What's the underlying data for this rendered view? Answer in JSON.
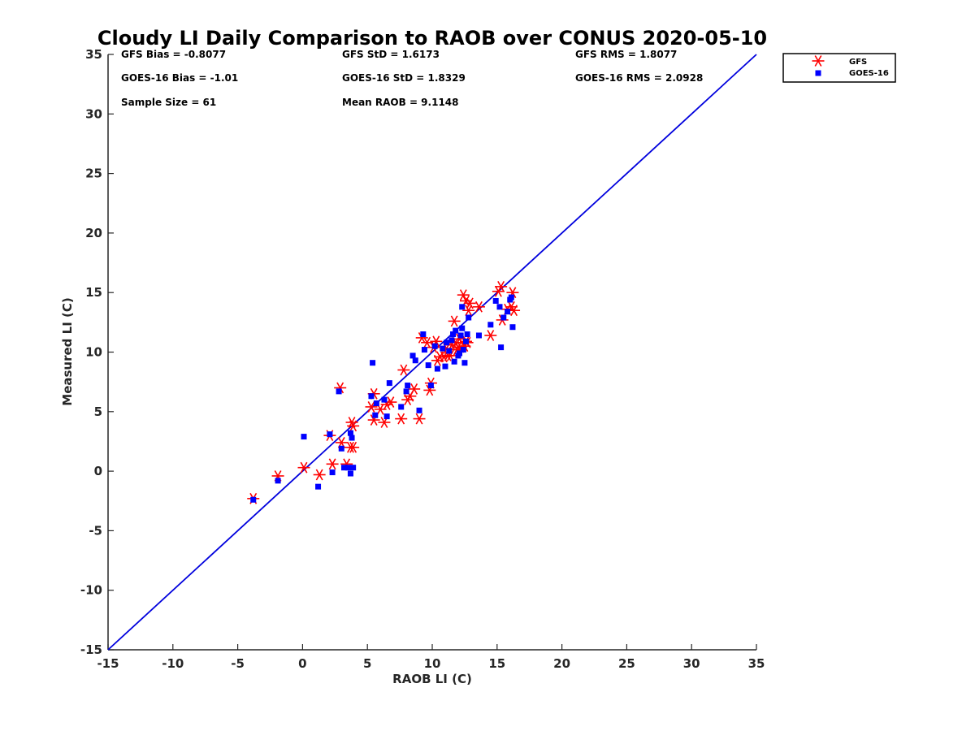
{
  "chart_data": {
    "type": "scatter",
    "title": "Cloudy LI Daily Comparison to RAOB over CONUS 2020-05-10",
    "xlabel": "RAOB LI (C)",
    "ylabel": "Measured LI (C)",
    "xlim": [
      -15,
      35
    ],
    "ylim": [
      -15,
      35
    ],
    "xticks": [
      -15,
      -10,
      -5,
      0,
      5,
      10,
      15,
      20,
      25,
      30,
      35
    ],
    "yticks": [
      -15,
      -10,
      -5,
      0,
      5,
      10,
      15,
      20,
      25,
      30,
      35
    ],
    "xtick_labels": [
      "-15",
      "-10",
      "-5",
      "0",
      "5",
      "10",
      "15",
      "20",
      "25",
      "30",
      "35"
    ],
    "ytick_labels": [
      "-15",
      "-10",
      "-5",
      "0",
      "5",
      "10",
      "15",
      "20",
      "25",
      "30",
      "35"
    ],
    "grid": false,
    "legend_position": "top-right outside plot",
    "reference_line": {
      "type": "1:1",
      "color": "#0000dd"
    },
    "stats": {
      "gfs_bias": "GFS Bias = -0.8077",
      "gfs_std": "GFS StD = 1.6173",
      "gfs_rms": "GFS RMS = 1.8077",
      "goes_bias": "GOES-16 Bias = -1.01",
      "goes_std": "GOES-16 StD = 1.8329",
      "goes_rms": "GOES-16 RMS = 2.0928",
      "sample_size": "Sample Size = 61",
      "mean_raob": "Mean RAOB = 9.1148"
    },
    "series": [
      {
        "name": "GFS",
        "marker": "asterisk",
        "color": "#ff0000",
        "points": [
          [
            -3.8,
            -2.3
          ],
          [
            -1.9,
            -0.4
          ],
          [
            0.1,
            0.3
          ],
          [
            1.3,
            -0.3
          ],
          [
            2.1,
            3.0
          ],
          [
            2.3,
            0.6
          ],
          [
            2.9,
            7.0
          ],
          [
            3.0,
            2.4
          ],
          [
            3.4,
            0.6
          ],
          [
            3.7,
            2.0
          ],
          [
            3.8,
            4.1
          ],
          [
            3.9,
            3.8
          ],
          [
            3.9,
            2.0
          ],
          [
            5.3,
            5.4
          ],
          [
            5.5,
            6.5
          ],
          [
            5.5,
            4.3
          ],
          [
            6.0,
            5.2
          ],
          [
            6.3,
            4.1
          ],
          [
            6.5,
            5.6
          ],
          [
            6.8,
            5.8
          ],
          [
            7.6,
            4.4
          ],
          [
            7.8,
            8.5
          ],
          [
            8.1,
            6.0
          ],
          [
            8.3,
            6.3
          ],
          [
            8.6,
            6.9
          ],
          [
            9.0,
            4.4
          ],
          [
            9.2,
            11.2
          ],
          [
            9.6,
            10.8
          ],
          [
            9.8,
            6.8
          ],
          [
            9.9,
            7.4
          ],
          [
            10.1,
            10.4
          ],
          [
            10.3,
            10.9
          ],
          [
            10.4,
            9.3
          ],
          [
            10.6,
            9.6
          ],
          [
            10.9,
            9.6
          ],
          [
            11.1,
            10.3
          ],
          [
            11.2,
            9.7
          ],
          [
            11.4,
            9.7
          ],
          [
            11.5,
            10.6
          ],
          [
            11.7,
            12.6
          ],
          [
            11.8,
            10.8
          ],
          [
            11.9,
            10.2
          ],
          [
            12.0,
            10.4
          ],
          [
            12.1,
            11.1
          ],
          [
            12.2,
            10.4
          ],
          [
            12.4,
            14.8
          ],
          [
            12.5,
            10.5
          ],
          [
            12.6,
            14.3
          ],
          [
            12.6,
            10.9
          ],
          [
            12.7,
            10.8
          ],
          [
            12.8,
            13.5
          ],
          [
            12.9,
            14.1
          ],
          [
            13.6,
            13.8
          ],
          [
            14.5,
            11.4
          ],
          [
            15.1,
            15.1
          ],
          [
            15.3,
            15.5
          ],
          [
            15.4,
            12.7
          ],
          [
            15.8,
            13.6
          ],
          [
            16.1,
            13.8
          ],
          [
            16.2,
            15.0
          ],
          [
            16.3,
            13.5
          ]
        ]
      },
      {
        "name": "GOES-16",
        "marker": "square",
        "color": "#0000ff",
        "points": [
          [
            -3.8,
            -2.4
          ],
          [
            -1.9,
            -0.8
          ],
          [
            0.1,
            2.9
          ],
          [
            1.2,
            -1.3
          ],
          [
            2.1,
            3.1
          ],
          [
            2.3,
            -0.1
          ],
          [
            2.8,
            6.7
          ],
          [
            3.0,
            1.9
          ],
          [
            3.2,
            0.3
          ],
          [
            3.5,
            0.3
          ],
          [
            3.7,
            -0.2
          ],
          [
            3.7,
            3.2
          ],
          [
            3.8,
            2.8
          ],
          [
            3.9,
            0.3
          ],
          [
            5.3,
            6.3
          ],
          [
            5.4,
            9.1
          ],
          [
            5.6,
            4.7
          ],
          [
            5.7,
            5.7
          ],
          [
            6.3,
            6.0
          ],
          [
            6.5,
            4.6
          ],
          [
            6.7,
            7.4
          ],
          [
            7.6,
            5.4
          ],
          [
            8.0,
            6.7
          ],
          [
            8.1,
            7.2
          ],
          [
            8.5,
            9.7
          ],
          [
            8.7,
            9.3
          ],
          [
            9.0,
            5.1
          ],
          [
            9.3,
            11.5
          ],
          [
            9.4,
            10.2
          ],
          [
            9.7,
            8.9
          ],
          [
            9.9,
            7.2
          ],
          [
            10.2,
            10.5
          ],
          [
            10.4,
            8.6
          ],
          [
            10.8,
            10.3
          ],
          [
            11.0,
            8.8
          ],
          [
            11.1,
            10.8
          ],
          [
            11.3,
            10.1
          ],
          [
            11.5,
            11.0
          ],
          [
            11.6,
            11.5
          ],
          [
            11.7,
            9.2
          ],
          [
            11.8,
            11.8
          ],
          [
            12.0,
            9.7
          ],
          [
            12.1,
            9.9
          ],
          [
            12.2,
            11.4
          ],
          [
            12.3,
            13.8
          ],
          [
            12.3,
            12.0
          ],
          [
            12.4,
            10.2
          ],
          [
            12.5,
            9.1
          ],
          [
            12.6,
            10.9
          ],
          [
            12.7,
            11.5
          ],
          [
            12.8,
            12.9
          ],
          [
            13.6,
            11.4
          ],
          [
            14.5,
            12.3
          ],
          [
            14.9,
            14.3
          ],
          [
            15.2,
            13.8
          ],
          [
            15.3,
            10.4
          ],
          [
            15.5,
            12.9
          ],
          [
            15.8,
            13.4
          ],
          [
            16.0,
            14.4
          ],
          [
            16.1,
            14.6
          ],
          [
            16.2,
            12.1
          ]
        ]
      }
    ]
  }
}
